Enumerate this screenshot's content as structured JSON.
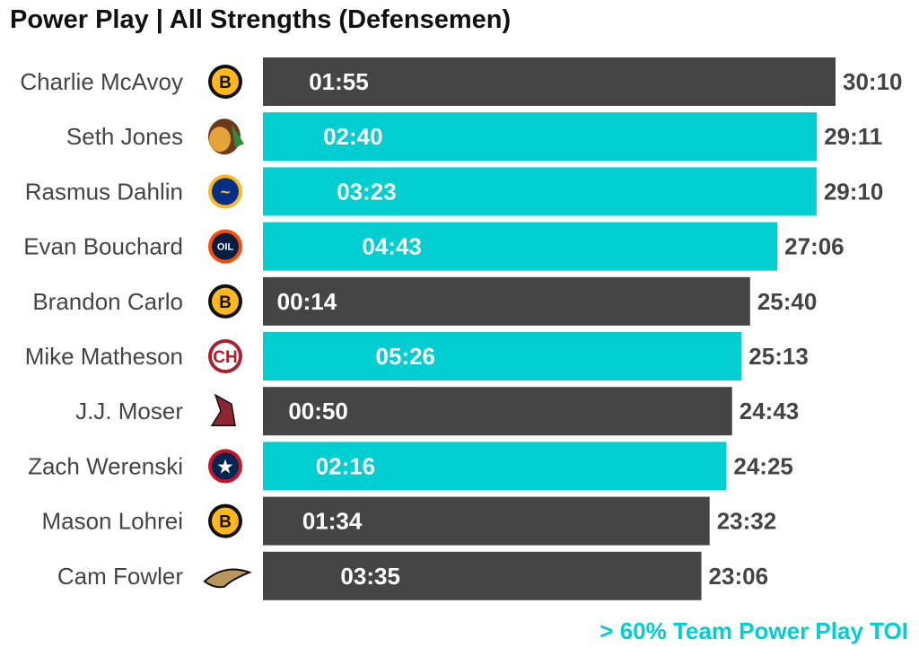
{
  "title": "Power Play | All Strengths (Defensemen)",
  "caption": "> 60% Team Power Play TOI",
  "colors": {
    "highlight": "#00CED1",
    "default": "#454545",
    "total_label": "#444444",
    "player_label": "#444444"
  },
  "chart_data": {
    "type": "bar",
    "orientation": "horizontal",
    "title": "Power Play | All Strengths (Defensemen)",
    "xlim_seconds": [
      0,
      1810
    ],
    "grid": false,
    "categories": [
      "Charlie McAvoy",
      "Seth Jones",
      "Rasmus Dahlin",
      "Evan Bouchard",
      "Brandon Carlo",
      "Mike Matheson",
      "J.J. Moser",
      "Zach Werenski",
      "Mason Lohrei",
      "Cam Fowler"
    ],
    "teams": [
      "bruins",
      "blackhawks",
      "sabres",
      "oilers",
      "bruins",
      "canadiens",
      "coyotes",
      "blue-jackets",
      "bruins",
      "ducks"
    ],
    "total_toi": [
      "30:10",
      "29:11",
      "29:10",
      "27:06",
      "25:40",
      "25:13",
      "24:43",
      "24:25",
      "23:32",
      "23:06"
    ],
    "pp_toi": [
      "01:55",
      "02:40",
      "03:23",
      "04:43",
      "00:14",
      "05:26",
      "00:50",
      "02:16",
      "01:34",
      "03:35"
    ],
    "highlight_over_60pct_team_pp": [
      false,
      true,
      true,
      true,
      false,
      true,
      false,
      true,
      false,
      false
    ]
  }
}
